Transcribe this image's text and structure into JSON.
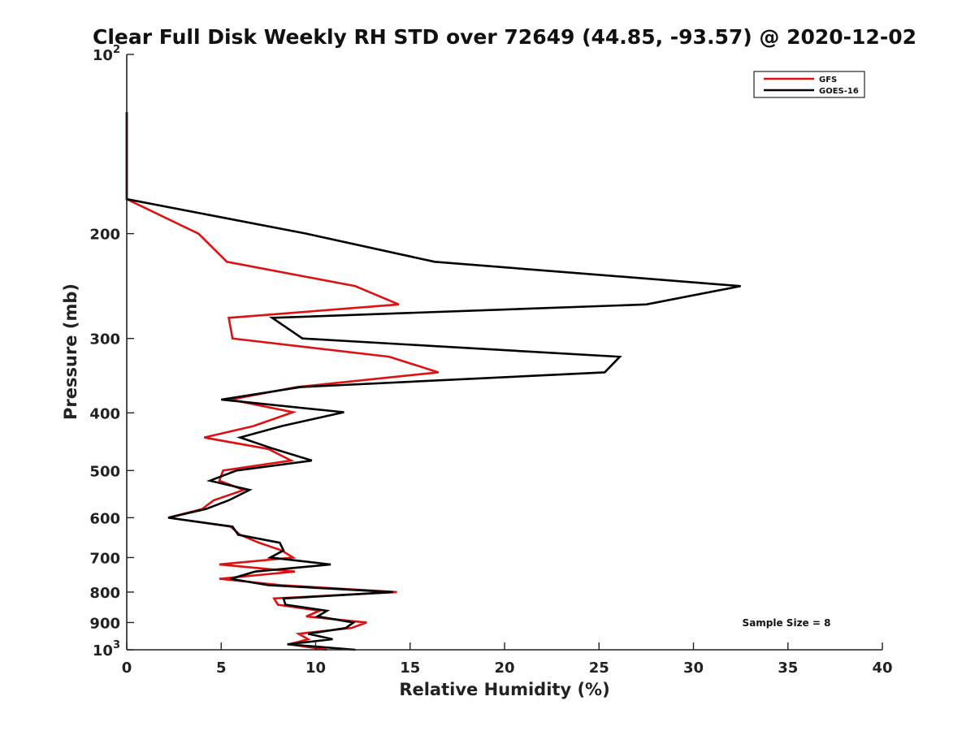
{
  "chart_data": {
    "type": "line",
    "title": "Clear Full Disk Weekly RH STD over 72649 (44.85, -93.57) @ 2020-12-02",
    "xlabel": "Relative Humidity (%)",
    "ylabel": "Pressure (mb)",
    "xlim": [
      0,
      40
    ],
    "ylim": [
      100,
      1000
    ],
    "y_scale": "log",
    "y_reversed": true,
    "x_ticks": [
      "0",
      "5",
      "10",
      "15",
      "20",
      "25",
      "30",
      "35",
      "40"
    ],
    "y_ticks": [
      {
        "value": 100,
        "base": "10",
        "exp": "2"
      },
      {
        "value": 200,
        "label": "200"
      },
      {
        "value": 300,
        "label": "300"
      },
      {
        "value": 400,
        "label": "400"
      },
      {
        "value": 500,
        "label": "500"
      },
      {
        "value": 600,
        "label": "600"
      },
      {
        "value": 700,
        "label": "700"
      },
      {
        "value": 800,
        "label": "800"
      },
      {
        "value": 900,
        "label": "900"
      },
      {
        "value": 1000,
        "base": "10",
        "exp": "3"
      }
    ],
    "legend_position": "top-right",
    "annotation": "Sample Size = 8",
    "series": [
      {
        "name": "GFS",
        "color": "#dd1111",
        "points": [
          [
            0,
            125
          ],
          [
            0,
            175
          ],
          [
            3.8,
            200
          ],
          [
            5.3,
            223
          ],
          [
            12.1,
            245
          ],
          [
            14.4,
            263
          ],
          [
            5.4,
            277
          ],
          [
            5.6,
            300
          ],
          [
            13.9,
            322
          ],
          [
            16.5,
            342
          ],
          [
            9.0,
            362
          ],
          [
            5.5,
            380
          ],
          [
            8.8,
            399
          ],
          [
            6.7,
            421
          ],
          [
            4.1,
            440
          ],
          [
            7.5,
            460
          ],
          [
            8.7,
            481
          ],
          [
            5.1,
            500
          ],
          [
            4.9,
            520
          ],
          [
            6.2,
            539
          ],
          [
            4.6,
            561
          ],
          [
            4.0,
            580
          ],
          [
            2.2,
            600
          ],
          [
            5.5,
            621
          ],
          [
            6.0,
            641
          ],
          [
            7.0,
            661
          ],
          [
            8.2,
            681
          ],
          [
            8.8,
            700
          ],
          [
            4.9,
            719
          ],
          [
            8.9,
            739
          ],
          [
            4.9,
            760
          ],
          [
            8.2,
            779
          ],
          [
            14.3,
            800
          ],
          [
            7.8,
            820
          ],
          [
            8.0,
            840
          ],
          [
            10.2,
            860
          ],
          [
            9.5,
            879
          ],
          [
            12.7,
            900
          ],
          [
            11.9,
            919
          ],
          [
            9.1,
            940
          ],
          [
            9.6,
            960
          ],
          [
            8.6,
            979
          ],
          [
            10.6,
            1000
          ]
        ]
      },
      {
        "name": "GOES-16",
        "color": "#000000",
        "points": [
          [
            0,
            125
          ],
          [
            0,
            175
          ],
          [
            9.5,
            200
          ],
          [
            16.3,
            223
          ],
          [
            32.5,
            245
          ],
          [
            27.5,
            263
          ],
          [
            7.7,
            277
          ],
          [
            9.3,
            300
          ],
          [
            26.1,
            322
          ],
          [
            25.3,
            342
          ],
          [
            9.2,
            362
          ],
          [
            5.0,
            380
          ],
          [
            11.5,
            399
          ],
          [
            8.2,
            421
          ],
          [
            6.0,
            440
          ],
          [
            7.8,
            460
          ],
          [
            9.8,
            481
          ],
          [
            5.8,
            500
          ],
          [
            4.4,
            520
          ],
          [
            6.5,
            539
          ],
          [
            5.4,
            561
          ],
          [
            4.2,
            580
          ],
          [
            2.2,
            600
          ],
          [
            5.6,
            621
          ],
          [
            5.9,
            641
          ],
          [
            8.1,
            661
          ],
          [
            8.3,
            681
          ],
          [
            7.6,
            700
          ],
          [
            10.8,
            719
          ],
          [
            6.8,
            739
          ],
          [
            5.5,
            760
          ],
          [
            7.5,
            779
          ],
          [
            14.1,
            800
          ],
          [
            8.3,
            820
          ],
          [
            8.4,
            840
          ],
          [
            10.6,
            860
          ],
          [
            10.1,
            879
          ],
          [
            12.0,
            900
          ],
          [
            11.6,
            919
          ],
          [
            9.6,
            940
          ],
          [
            10.9,
            960
          ],
          [
            8.5,
            979
          ],
          [
            12.1,
            1000
          ]
        ]
      }
    ]
  }
}
